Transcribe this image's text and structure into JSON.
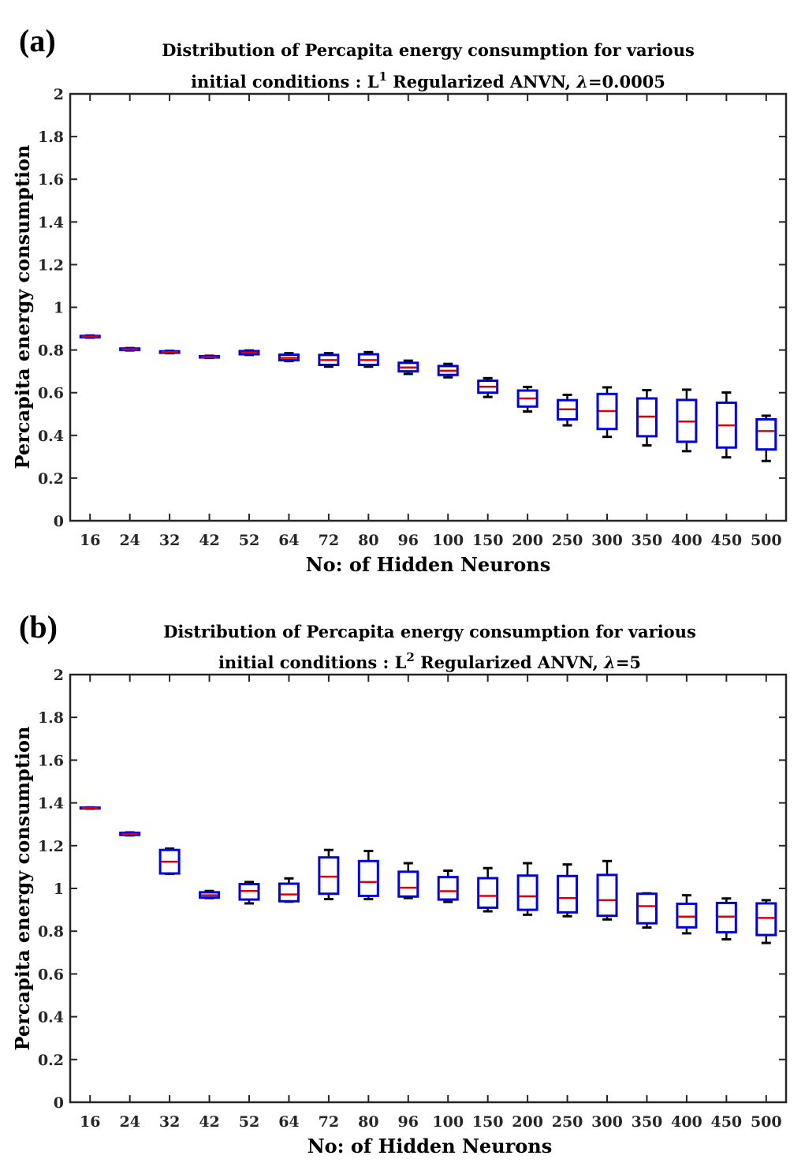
{
  "chart_data": [
    {
      "type": "box",
      "panel_label": "(a)",
      "title_line1": "Distribution of Percapita energy consumption for various",
      "title_line2_prefix": "initial conditions : L",
      "title_line2_sup": "1",
      "title_line2_mid": " Regularized ANVN, ",
      "title_line2_lambda": "λ",
      "title_line2_suffix": "=0.0005",
      "xlabel": "No: of Hidden Neurons",
      "ylabel": "Percapita energy consumption",
      "ylim": [
        0,
        2
      ],
      "yticks": [
        "0",
        "0.2",
        "0.4",
        "0.6",
        "0.8",
        "1",
        "1.2",
        "1.4",
        "1.6",
        "1.8",
        "2"
      ],
      "categories": [
        "16",
        "24",
        "32",
        "42",
        "52",
        "64",
        "72",
        "80",
        "96",
        "100",
        "150",
        "200",
        "250",
        "300",
        "350",
        "400",
        "450",
        "500"
      ],
      "boxes": [
        {
          "min": 0.858,
          "q1": 0.86,
          "median": 0.863,
          "q3": 0.866,
          "max": 0.868
        },
        {
          "min": 0.798,
          "q1": 0.8,
          "median": 0.803,
          "q3": 0.807,
          "max": 0.809
        },
        {
          "min": 0.785,
          "q1": 0.787,
          "median": 0.79,
          "q3": 0.794,
          "max": 0.796
        },
        {
          "min": 0.763,
          "q1": 0.765,
          "median": 0.767,
          "q3": 0.771,
          "max": 0.773
        },
        {
          "min": 0.777,
          "q1": 0.78,
          "median": 0.788,
          "q3": 0.795,
          "max": 0.798
        },
        {
          "min": 0.748,
          "q1": 0.752,
          "median": 0.763,
          "q3": 0.778,
          "max": 0.785
        },
        {
          "min": 0.722,
          "q1": 0.73,
          "median": 0.753,
          "q3": 0.777,
          "max": 0.785
        },
        {
          "min": 0.722,
          "q1": 0.73,
          "median": 0.753,
          "q3": 0.78,
          "max": 0.79
        },
        {
          "min": 0.688,
          "q1": 0.7,
          "median": 0.718,
          "q3": 0.74,
          "max": 0.75
        },
        {
          "min": 0.672,
          "q1": 0.683,
          "median": 0.703,
          "q3": 0.725,
          "max": 0.735
        },
        {
          "min": 0.58,
          "q1": 0.6,
          "median": 0.628,
          "q3": 0.656,
          "max": 0.668
        },
        {
          "min": 0.512,
          "q1": 0.535,
          "median": 0.573,
          "q3": 0.61,
          "max": 0.627
        },
        {
          "min": 0.447,
          "q1": 0.475,
          "median": 0.522,
          "q3": 0.565,
          "max": 0.59
        },
        {
          "min": 0.393,
          "q1": 0.43,
          "median": 0.514,
          "q3": 0.594,
          "max": 0.625
        },
        {
          "min": 0.353,
          "q1": 0.396,
          "median": 0.488,
          "q3": 0.573,
          "max": 0.612
        },
        {
          "min": 0.326,
          "q1": 0.37,
          "median": 0.465,
          "q3": 0.566,
          "max": 0.614
        },
        {
          "min": 0.297,
          "q1": 0.343,
          "median": 0.447,
          "q3": 0.553,
          "max": 0.601
        },
        {
          "min": 0.28,
          "q1": 0.334,
          "median": 0.42,
          "q3": 0.475,
          "max": 0.492
        }
      ]
    },
    {
      "type": "box",
      "panel_label": "(b)",
      "title_line1": "Distribution of Percapita energy consumption for various",
      "title_line2_prefix": "initial conditions : L",
      "title_line2_sup": "2",
      "title_line2_mid": " Regularized ANVN, ",
      "title_line2_lambda": "λ",
      "title_line2_suffix": "=5",
      "xlabel": "No: of Hidden Neurons",
      "ylabel": "Percapita energy consumption",
      "ylim": [
        0,
        2
      ],
      "yticks": [
        "0",
        "0.2",
        "0.4",
        "0.6",
        "0.8",
        "1",
        "1.2",
        "1.4",
        "1.6",
        "1.8",
        "2"
      ],
      "categories": [
        "16",
        "24",
        "32",
        "42",
        "52",
        "64",
        "72",
        "80",
        "96",
        "100",
        "150",
        "200",
        "250",
        "300",
        "350",
        "400",
        "450",
        "500"
      ],
      "boxes": [
        {
          "min": 1.373,
          "q1": 1.374,
          "median": 1.376,
          "q3": 1.378,
          "max": 1.379
        },
        {
          "min": 1.248,
          "q1": 1.25,
          "median": 1.255,
          "q3": 1.26,
          "max": 1.262
        },
        {
          "min": 1.068,
          "q1": 1.07,
          "median": 1.125,
          "q3": 1.18,
          "max": 1.186
        },
        {
          "min": 0.955,
          "q1": 0.957,
          "median": 0.968,
          "q3": 0.982,
          "max": 0.988
        },
        {
          "min": 0.93,
          "q1": 0.948,
          "median": 0.988,
          "q3": 1.02,
          "max": 1.03
        },
        {
          "min": 0.938,
          "q1": 0.94,
          "median": 0.972,
          "q3": 1.022,
          "max": 1.047
        },
        {
          "min": 0.95,
          "q1": 0.975,
          "median": 1.055,
          "q3": 1.145,
          "max": 1.18
        },
        {
          "min": 0.95,
          "q1": 0.965,
          "median": 1.03,
          "q3": 1.128,
          "max": 1.175
        },
        {
          "min": 0.955,
          "q1": 0.962,
          "median": 1.003,
          "q3": 1.078,
          "max": 1.118
        },
        {
          "min": 0.937,
          "q1": 0.948,
          "median": 0.987,
          "q3": 1.053,
          "max": 1.083
        },
        {
          "min": 0.893,
          "q1": 0.91,
          "median": 0.965,
          "q3": 1.048,
          "max": 1.095
        },
        {
          "min": 0.877,
          "q1": 0.9,
          "median": 0.963,
          "q3": 1.06,
          "max": 1.118
        },
        {
          "min": 0.87,
          "q1": 0.888,
          "median": 0.955,
          "q3": 1.058,
          "max": 1.112
        },
        {
          "min": 0.855,
          "q1": 0.872,
          "median": 0.945,
          "q3": 1.063,
          "max": 1.128
        },
        {
          "min": 0.817,
          "q1": 0.837,
          "median": 0.917,
          "q3": 0.975,
          "max": 0.977
        },
        {
          "min": 0.79,
          "q1": 0.818,
          "median": 0.868,
          "q3": 0.928,
          "max": 0.968
        },
        {
          "min": 0.762,
          "q1": 0.795,
          "median": 0.868,
          "q3": 0.932,
          "max": 0.953
        },
        {
          "min": 0.745,
          "q1": 0.782,
          "median": 0.862,
          "q3": 0.93,
          "max": 0.945
        }
      ]
    }
  ],
  "colors": {
    "box": "#0000dd",
    "median": "#dd0000",
    "whisker": "#000000",
    "axis": "#262626",
    "text": "#262626"
  }
}
